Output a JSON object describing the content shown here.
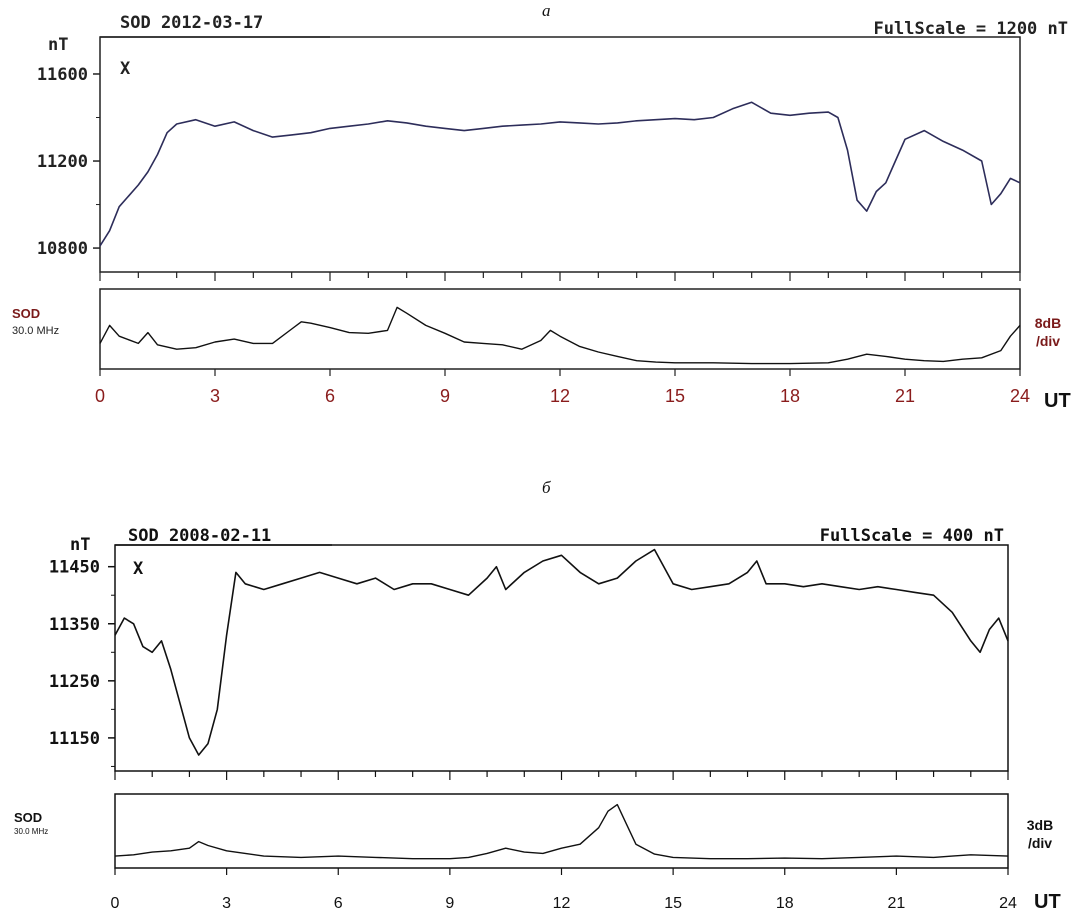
{
  "panel_labels": [
    "а",
    "б"
  ],
  "chart_data": [
    {
      "type": "line",
      "id": "a",
      "title": "SOD 2012-03-17",
      "full_scale": "FullScale = 1200 nT",
      "component": "X",
      "ylabel": "nT",
      "yticks": [
        "11600",
        "11200",
        "10800"
      ],
      "ytick_values": [
        11600,
        11200,
        10800
      ],
      "ylim": [
        10690,
        11770
      ],
      "xlabel": "UT",
      "xticks": [
        "0",
        "3",
        "6",
        "9",
        "12",
        "15",
        "18",
        "21",
        "24"
      ],
      "xlim": [
        0,
        24
      ],
      "series": [
        {
          "x": [
            0,
            0.25,
            0.5,
            0.75,
            1,
            1.25,
            1.5,
            1.75,
            2,
            2.5,
            3,
            3.5,
            4,
            4.5,
            5,
            5.5,
            6,
            6.5,
            7,
            7.5,
            8,
            8.5,
            9,
            9.5,
            10,
            10.5,
            11,
            11.5,
            12,
            12.5,
            13,
            13.5,
            14,
            14.5,
            15,
            15.5,
            16,
            16.5,
            17,
            17.5,
            18,
            18.5,
            19,
            19.25,
            19.5,
            19.75,
            20,
            20.25,
            20.5,
            20.75,
            21,
            21.5,
            22,
            22.5,
            23,
            23.25,
            23.5,
            23.75,
            24
          ],
          "values": [
            10810,
            10880,
            10990,
            11040,
            11090,
            11150,
            11230,
            11330,
            11370,
            11390,
            11360,
            11380,
            11340,
            11310,
            11320,
            11330,
            11350,
            11360,
            11370,
            11385,
            11375,
            11360,
            11350,
            11340,
            11350,
            11360,
            11365,
            11370,
            11380,
            11375,
            11370,
            11375,
            11385,
            11390,
            11395,
            11390,
            11400,
            11440,
            11470,
            11420,
            11410,
            11420,
            11425,
            11400,
            11250,
            11020,
            10970,
            11060,
            11100,
            11200,
            11300,
            11340,
            11290,
            11250,
            11200,
            11000,
            11050,
            11120,
            11100
          ]
        }
      ],
      "subpanel": {
        "label": "SOD",
        "frequency": "30.0 MHz",
        "scale": [
          "8dB",
          "/div"
        ],
        "ylim": [
          0,
          100
        ],
        "series": [
          {
            "x": [
              0,
              0.25,
              0.5,
              0.75,
              1,
              1.25,
              1.5,
              2,
              2.5,
              3,
              3.5,
              4,
              4.5,
              5,
              5.25,
              5.5,
              6,
              6.5,
              7,
              7.5,
              7.75,
              8,
              8.5,
              9,
              9.5,
              10,
              10.5,
              11,
              11.5,
              11.75,
              12,
              12.5,
              13,
              13.5,
              14,
              14.5,
              15,
              16,
              17,
              18,
              19,
              19.5,
              20,
              20.5,
              21,
              21.5,
              22,
              22.5,
              23,
              23.5,
              23.75,
              24
            ],
            "values": [
              30,
              55,
              40,
              35,
              30,
              45,
              28,
              22,
              24,
              32,
              36,
              30,
              30,
              50,
              60,
              58,
              52,
              45,
              44,
              48,
              80,
              72,
              55,
              44,
              32,
              30,
              28,
              22,
              34,
              48,
              40,
              26,
              18,
              12,
              6,
              4,
              3,
              3,
              2,
              2,
              3,
              8,
              15,
              12,
              8,
              6,
              5,
              8,
              10,
              20,
              40,
              55
            ]
          }
        ]
      }
    },
    {
      "type": "line",
      "id": "b",
      "title": "SOD 2008-02-11",
      "full_scale": "FullScale = 400 nT",
      "component": "X",
      "ylabel": "nT",
      "yticks": [
        "11450",
        "11350",
        "11250",
        "11150"
      ],
      "ytick_values": [
        11450,
        11350,
        11250,
        11150
      ],
      "ylim": [
        11092,
        11488
      ],
      "xlabel": "UT",
      "xticks": [
        "0",
        "3",
        "6",
        "9",
        "12",
        "15",
        "18",
        "21",
        "24"
      ],
      "xlim": [
        0,
        24
      ],
      "series": [
        {
          "x": [
            0,
            0.25,
            0.5,
            0.75,
            1,
            1.25,
            1.5,
            1.75,
            2,
            2.25,
            2.5,
            2.75,
            3,
            3.25,
            3.5,
            4,
            4.5,
            5,
            5.5,
            6,
            6.5,
            7,
            7.5,
            8,
            8.5,
            9,
            9.5,
            10,
            10.25,
            10.5,
            11,
            11.5,
            12,
            12.5,
            13,
            13.5,
            14,
            14.5,
            15,
            15.5,
            16,
            16.5,
            17,
            17.25,
            17.5,
            18,
            18.5,
            19,
            19.5,
            20,
            20.5,
            21,
            21.5,
            22,
            22.5,
            23,
            23.25,
            23.5,
            23.75,
            24
          ],
          "values": [
            11330,
            11360,
            11350,
            11310,
            11300,
            11320,
            11270,
            11210,
            11150,
            11120,
            11140,
            11200,
            11330,
            11440,
            11420,
            11410,
            11420,
            11430,
            11440,
            11430,
            11420,
            11430,
            11410,
            11420,
            11420,
            11410,
            11400,
            11430,
            11450,
            11410,
            11440,
            11460,
            11470,
            11440,
            11420,
            11430,
            11460,
            11480,
            11420,
            11410,
            11415,
            11420,
            11440,
            11460,
            11420,
            11420,
            11415,
            11420,
            11415,
            11410,
            11415,
            11410,
            11405,
            11400,
            11370,
            11320,
            11300,
            11340,
            11360,
            11320
          ]
        }
      ],
      "subpanel": {
        "label": "SOD",
        "frequency": "30.0 MHz",
        "scale": [
          "3dB",
          "/div"
        ],
        "ylim": [
          0,
          100
        ],
        "series": [
          {
            "x": [
              0,
              0.5,
              1,
              1.5,
              2,
              2.25,
              2.5,
              3,
              3.5,
              4,
              5,
              6,
              7,
              8,
              9,
              9.5,
              10,
              10.5,
              11,
              11.5,
              12,
              12.5,
              13,
              13.25,
              13.5,
              13.75,
              14,
              14.5,
              15,
              16,
              17,
              18,
              19,
              20,
              21,
              22,
              22.5,
              23,
              24
            ],
            "values": [
              12,
              14,
              18,
              20,
              24,
              34,
              28,
              20,
              16,
              12,
              10,
              12,
              10,
              8,
              8,
              10,
              16,
              24,
              18,
              16,
              24,
              30,
              55,
              80,
              90,
              60,
              30,
              15,
              10,
              8,
              8,
              9,
              8,
              10,
              12,
              10,
              12,
              14,
              12
            ]
          }
        ]
      }
    }
  ]
}
